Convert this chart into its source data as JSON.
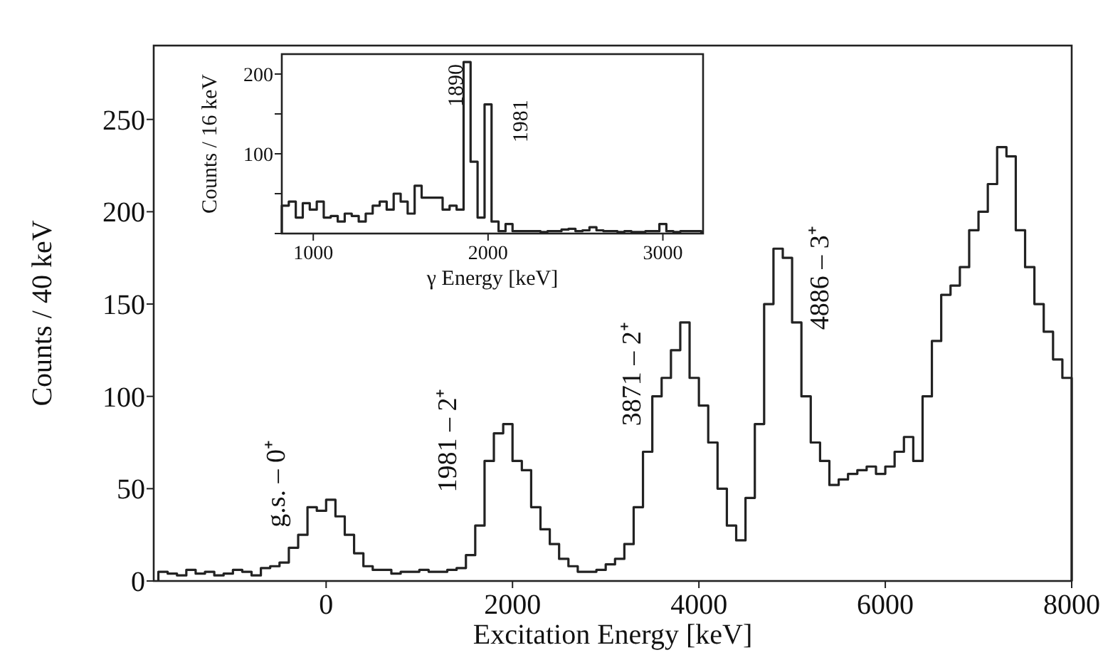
{
  "chart_data": [
    {
      "type": "histogram",
      "xlabel": "Excitation Energy [keV]",
      "ylabel": "Counts / 40 keV",
      "color": "#222222",
      "xlim": [
        -1850,
        8000
      ],
      "ylim": [
        0,
        290
      ],
      "xticks": [
        0,
        2000,
        4000,
        6000,
        8000
      ],
      "yticks": [
        0,
        50,
        100,
        150,
        200,
        250
      ],
      "bins": [
        -1800,
        -1700,
        -1600,
        -1500,
        -1400,
        -1300,
        -1200,
        -1100,
        -1000,
        -900,
        -800,
        -700,
        -600,
        -500,
        -400,
        -300,
        -200,
        -100,
        0,
        100,
        200,
        300,
        400,
        500,
        600,
        700,
        800,
        900,
        1000,
        1100,
        1200,
        1300,
        1400,
        1500,
        1600,
        1700,
        1800,
        1900,
        2000,
        2100,
        2200,
        2300,
        2400,
        2500,
        2600,
        2700,
        2800,
        2900,
        3000,
        3100,
        3200,
        3300,
        3400,
        3500,
        3600,
        3700,
        3800,
        3900,
        4000,
        4100,
        4200,
        4300,
        4400,
        4500,
        4600,
        4700,
        4800,
        4900,
        5000,
        5100,
        5200,
        5300,
        5400,
        5500,
        5600,
        5700,
        5800,
        5900,
        6000,
        6100,
        6200,
        6300,
        6400,
        6500,
        6600,
        6700,
        6800,
        6900,
        7000,
        7100,
        7200,
        7300,
        7400,
        7500,
        7600,
        7700,
        7800,
        7900,
        8000
      ],
      "values": [
        5,
        4,
        3,
        6,
        4,
        5,
        3,
        4,
        6,
        5,
        3,
        7,
        8,
        10,
        18,
        25,
        40,
        38,
        44,
        35,
        25,
        15,
        8,
        6,
        6,
        4,
        5,
        5,
        6,
        5,
        5,
        6,
        7,
        14,
        30,
        65,
        80,
        85,
        65,
        60,
        40,
        28,
        20,
        12,
        8,
        5,
        5,
        6,
        9,
        12,
        20,
        40,
        70,
        100,
        110,
        125,
        140,
        110,
        95,
        75,
        50,
        30,
        22,
        45,
        85,
        150,
        180,
        175,
        140,
        100,
        75,
        65,
        52,
        55,
        58,
        60,
        62,
        58,
        62,
        70,
        78,
        65,
        100,
        130,
        155,
        160,
        170,
        190,
        200,
        215,
        235,
        230,
        190,
        170,
        150,
        135,
        120,
        110
      ],
      "annotations": [
        "g.s. – 0⁺",
        "1981 – 2⁺",
        "3871 – 2⁺",
        "4886 – 3⁺"
      ]
    },
    {
      "type": "histogram",
      "xlabel": "γ Energy [keV]",
      "ylabel": "Counts / 16 keV",
      "color": "#222222",
      "xlim": [
        820,
        3230
      ],
      "ylim": [
        0,
        225
      ],
      "xticks": [
        1000,
        2000,
        3000
      ],
      "yticks": [
        {
          "value": 0,
          "label": null
        },
        {
          "value": 50,
          "label": null
        },
        100,
        {
          "value": 150,
          "label": null
        },
        200
      ],
      "bins": [
        820,
        860,
        900,
        940,
        980,
        1020,
        1060,
        1100,
        1140,
        1180,
        1220,
        1260,
        1300,
        1340,
        1380,
        1420,
        1460,
        1500,
        1540,
        1580,
        1620,
        1660,
        1700,
        1740,
        1780,
        1820,
        1860,
        1900,
        1940,
        1980,
        2020,
        2060,
        2100,
        2140,
        2180,
        2220,
        2260,
        2300,
        2340,
        2380,
        2420,
        2460,
        2500,
        2540,
        2580,
        2620,
        2660,
        2700,
        2740,
        2780,
        2820,
        2860,
        2900,
        2940,
        2980,
        3020,
        3060,
        3100,
        3140,
        3180,
        3220
      ],
      "values": [
        35,
        40,
        20,
        38,
        30,
        40,
        20,
        22,
        15,
        25,
        22,
        15,
        25,
        35,
        40,
        30,
        50,
        40,
        25,
        60,
        45,
        45,
        45,
        30,
        35,
        30,
        215,
        90,
        20,
        162,
        15,
        3,
        12,
        3,
        3,
        3,
        3,
        2,
        3,
        3,
        5,
        6,
        3,
        4,
        8,
        4,
        3,
        3,
        2,
        3,
        2,
        2,
        3,
        3,
        12,
        3,
        2,
        3,
        3,
        3
      ],
      "annotations": [
        "1890",
        "1981"
      ]
    }
  ]
}
